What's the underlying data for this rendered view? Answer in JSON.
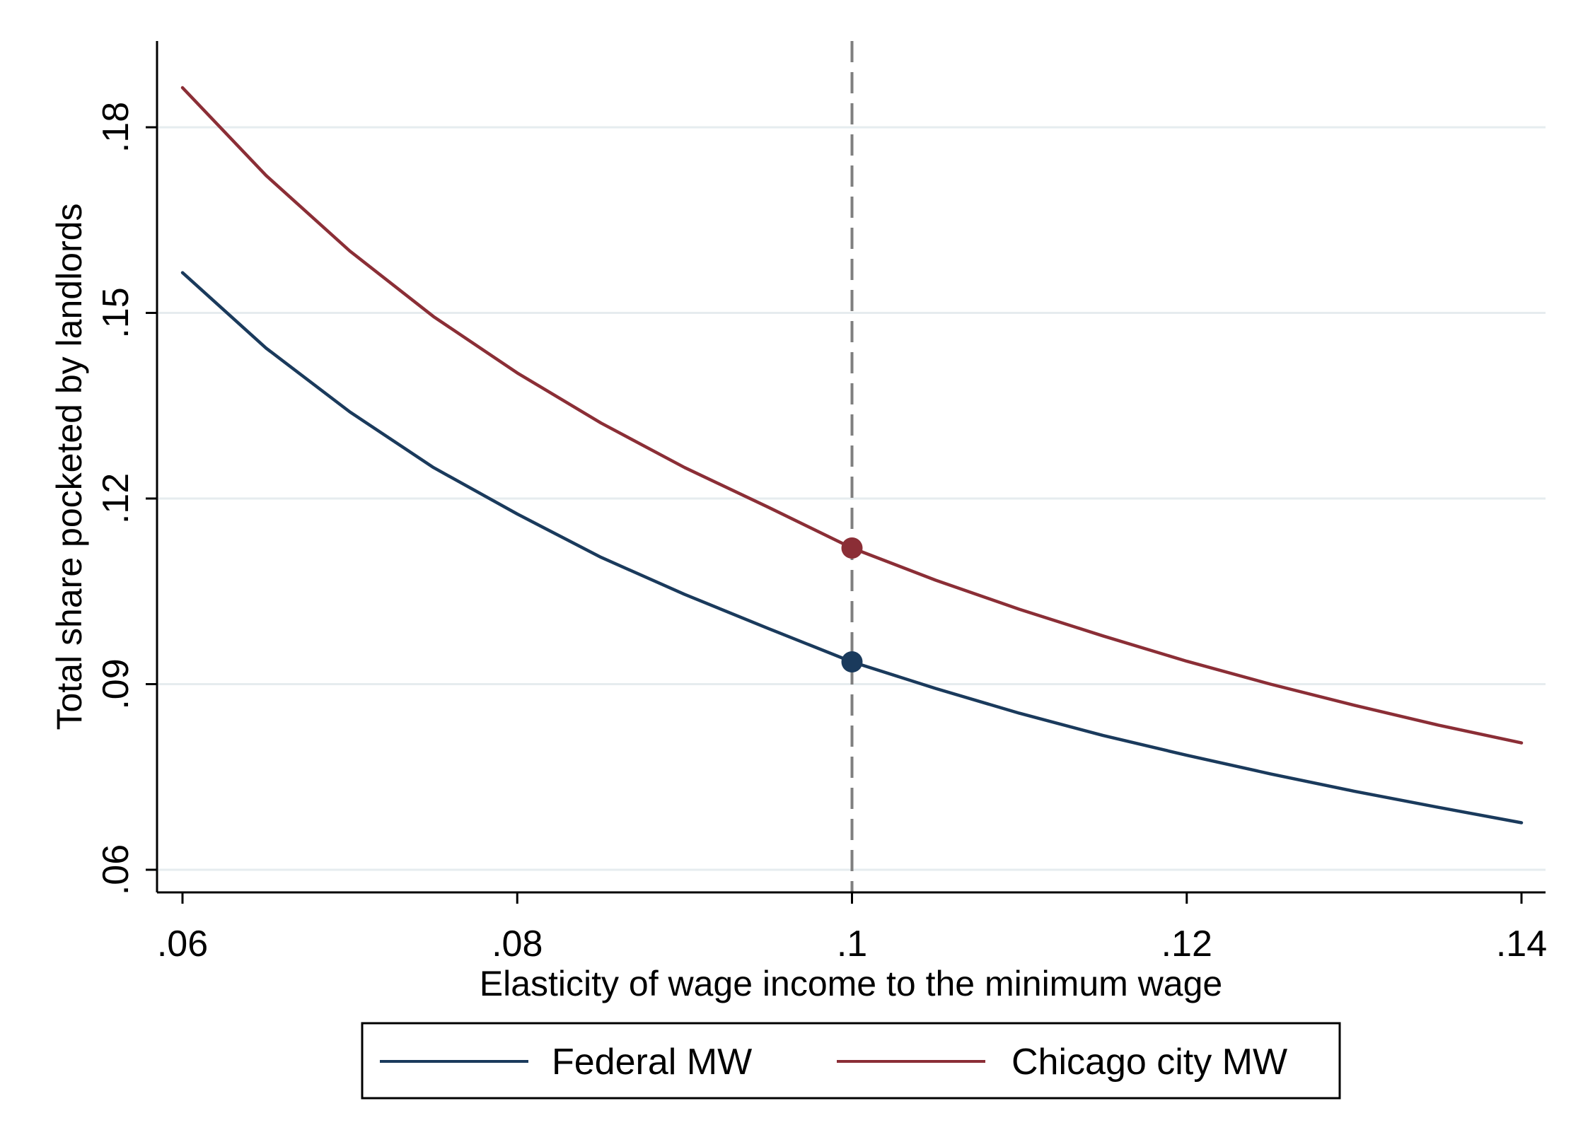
{
  "chart_data": {
    "type": "line",
    "xlabel": "Elasticity of wage income to the minimum wage",
    "ylabel": "Total share pocketed by landlords",
    "xlim": [
      0.058,
      0.1405
    ],
    "ylim": [
      0.056,
      0.193
    ],
    "x_ticks": [
      0.06,
      0.08,
      0.1,
      0.12,
      0.14
    ],
    "x_tick_labels": [
      ".06",
      ".08",
      ".1",
      ".12",
      ".14"
    ],
    "y_ticks": [
      0.06,
      0.09,
      0.12,
      0.15,
      0.18
    ],
    "y_tick_labels": [
      ".06",
      ".09",
      ".12",
      ".15",
      ".18"
    ],
    "grid": "horizontal",
    "reference_line": {
      "x": 0.1,
      "style": "dashed",
      "color": "#7f7f7f"
    },
    "x": [
      0.06,
      0.065,
      0.07,
      0.075,
      0.08,
      0.085,
      0.09,
      0.095,
      0.1,
      0.105,
      0.11,
      0.115,
      0.12,
      0.125,
      0.13,
      0.135,
      0.14
    ],
    "series": [
      {
        "name": "Federal MW",
        "color": "#1a3a5c",
        "values": [
          0.1565,
          0.1443,
          0.134,
          0.125,
          0.1175,
          0.1105,
          0.1045,
          0.099,
          0.0936,
          0.0893,
          0.0853,
          0.0817,
          0.0785,
          0.0755,
          0.0727,
          0.0701,
          0.0676
        ],
        "marker": {
          "x": 0.1,
          "y": 0.0936
        }
      },
      {
        "name": "Chicago city MW",
        "color": "#8b2e36",
        "values": [
          0.1864,
          0.1722,
          0.16,
          0.1494,
          0.1403,
          0.1322,
          0.125,
          0.1186,
          0.112,
          0.1068,
          0.1021,
          0.0978,
          0.0937,
          0.09,
          0.0866,
          0.0834,
          0.0805
        ],
        "marker": {
          "x": 0.1,
          "y": 0.112
        }
      }
    ],
    "legend_position": "bottom"
  }
}
